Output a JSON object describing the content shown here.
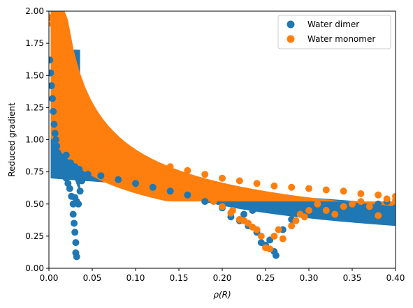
{
  "chart_data": {
    "type": "scatter",
    "xlabel": "ρ(R)",
    "ylabel": "Reduced gradient",
    "xlim": [
      0.0,
      0.4
    ],
    "ylim": [
      0.0,
      2.0
    ],
    "xticks": [
      "0.00",
      "0.05",
      "0.10",
      "0.15",
      "0.20",
      "0.25",
      "0.30",
      "0.35",
      "0.40"
    ],
    "xtick_values": [
      0.0,
      0.05,
      0.1,
      0.15,
      0.2,
      0.25,
      0.3,
      0.35,
      0.4
    ],
    "yticks": [
      "0.00",
      "0.25",
      "0.50",
      "0.75",
      "1.00",
      "1.25",
      "1.50",
      "1.75",
      "2.00"
    ],
    "ytick_values": [
      0.0,
      0.25,
      0.5,
      0.75,
      1.0,
      1.25,
      1.5,
      1.75,
      2.0
    ],
    "grid": false,
    "legend_position": "top-right",
    "series": [
      {
        "name": "Water dimer",
        "color": "#1f77b4",
        "points": [
          [
            0.001,
            1.62
          ],
          [
            0.002,
            1.52
          ],
          [
            0.003,
            1.42
          ],
          [
            0.004,
            1.32
          ],
          [
            0.005,
            1.22
          ],
          [
            0.006,
            1.12
          ],
          [
            0.007,
            1.05
          ],
          [
            0.008,
            1.0
          ],
          [
            0.009,
            0.95
          ],
          [
            0.01,
            0.9
          ],
          [
            0.012,
            0.86
          ],
          [
            0.014,
            0.82
          ],
          [
            0.016,
            0.78
          ],
          [
            0.018,
            0.74
          ],
          [
            0.02,
            0.7
          ],
          [
            0.022,
            0.66
          ],
          [
            0.024,
            0.62
          ],
          [
            0.026,
            0.56
          ],
          [
            0.028,
            0.5
          ],
          [
            0.028,
            0.42
          ],
          [
            0.029,
            0.35
          ],
          [
            0.03,
            0.28
          ],
          [
            0.031,
            0.2
          ],
          [
            0.031,
            0.12
          ],
          [
            0.032,
            0.09
          ],
          [
            0.03,
            0.55
          ],
          [
            0.032,
            0.52
          ],
          [
            0.034,
            0.5
          ],
          [
            0.036,
            0.6
          ],
          [
            0.038,
            0.68
          ],
          [
            0.04,
            0.72
          ],
          [
            0.045,
            0.73
          ],
          [
            0.02,
            0.88
          ],
          [
            0.025,
            0.82
          ],
          [
            0.03,
            0.79
          ],
          [
            0.035,
            0.77
          ],
          [
            0.06,
            0.72
          ],
          [
            0.08,
            0.69
          ],
          [
            0.1,
            0.66
          ],
          [
            0.12,
            0.63
          ],
          [
            0.14,
            0.6
          ],
          [
            0.16,
            0.57
          ],
          [
            0.18,
            0.52
          ],
          [
            0.2,
            0.47
          ],
          [
            0.21,
            0.4
          ],
          [
            0.22,
            0.37
          ],
          [
            0.23,
            0.33
          ],
          [
            0.24,
            0.28
          ],
          [
            0.245,
            0.2
          ],
          [
            0.25,
            0.18
          ],
          [
            0.255,
            0.22
          ],
          [
            0.26,
            0.13
          ],
          [
            0.262,
            0.1
          ],
          [
            0.27,
            0.3
          ],
          [
            0.28,
            0.38
          ],
          [
            0.29,
            0.42
          ],
          [
            0.3,
            0.46
          ],
          [
            0.31,
            0.48
          ],
          [
            0.32,
            0.47
          ],
          [
            0.33,
            0.44
          ],
          [
            0.35,
            0.45
          ],
          [
            0.36,
            0.49
          ],
          [
            0.37,
            0.46
          ],
          [
            0.38,
            0.5
          ],
          [
            0.39,
            0.52
          ],
          [
            0.4,
            0.47
          ],
          [
            0.34,
            0.42
          ],
          [
            0.35,
            0.4
          ],
          [
            0.225,
            0.42
          ],
          [
            0.235,
            0.45
          ]
        ]
      },
      {
        "name": "Water monomer",
        "color": "#ff7f0e",
        "points": [
          [
            0.002,
            1.95
          ],
          [
            0.004,
            1.9
          ],
          [
            0.006,
            1.85
          ],
          [
            0.008,
            1.8
          ],
          [
            0.01,
            1.75
          ],
          [
            0.012,
            1.7
          ],
          [
            0.014,
            1.6
          ],
          [
            0.016,
            1.5
          ],
          [
            0.018,
            1.42
          ],
          [
            0.02,
            1.35
          ],
          [
            0.025,
            1.25
          ],
          [
            0.03,
            1.17
          ],
          [
            0.035,
            1.12
          ],
          [
            0.04,
            1.07
          ],
          [
            0.05,
            1.0
          ],
          [
            0.06,
            0.96
          ],
          [
            0.07,
            0.93
          ],
          [
            0.08,
            0.9
          ],
          [
            0.1,
            0.86
          ],
          [
            0.12,
            0.82
          ],
          [
            0.14,
            0.79
          ],
          [
            0.16,
            0.76
          ],
          [
            0.18,
            0.73
          ],
          [
            0.2,
            0.7
          ],
          [
            0.22,
            0.68
          ],
          [
            0.24,
            0.66
          ],
          [
            0.26,
            0.64
          ],
          [
            0.28,
            0.63
          ],
          [
            0.3,
            0.62
          ],
          [
            0.32,
            0.61
          ],
          [
            0.34,
            0.6
          ],
          [
            0.36,
            0.58
          ],
          [
            0.38,
            0.57
          ],
          [
            0.4,
            0.56
          ],
          [
            0.015,
            1.05
          ],
          [
            0.02,
            0.95
          ],
          [
            0.03,
            0.9
          ],
          [
            0.04,
            0.86
          ],
          [
            0.05,
            0.82
          ],
          [
            0.07,
            0.78
          ],
          [
            0.09,
            0.74
          ],
          [
            0.11,
            0.7
          ],
          [
            0.13,
            0.66
          ],
          [
            0.15,
            0.62
          ],
          [
            0.17,
            0.57
          ],
          [
            0.19,
            0.52
          ],
          [
            0.2,
            0.48
          ],
          [
            0.21,
            0.43
          ],
          [
            0.22,
            0.38
          ],
          [
            0.23,
            0.35
          ],
          [
            0.235,
            0.32
          ],
          [
            0.24,
            0.3
          ],
          [
            0.245,
            0.25
          ],
          [
            0.25,
            0.16
          ],
          [
            0.255,
            0.15
          ],
          [
            0.26,
            0.25
          ],
          [
            0.265,
            0.3
          ],
          [
            0.27,
            0.23
          ],
          [
            0.28,
            0.33
          ],
          [
            0.29,
            0.42
          ],
          [
            0.3,
            0.45
          ],
          [
            0.31,
            0.5
          ],
          [
            0.32,
            0.45
          ],
          [
            0.33,
            0.42
          ],
          [
            0.34,
            0.48
          ],
          [
            0.35,
            0.5
          ],
          [
            0.36,
            0.52
          ],
          [
            0.37,
            0.48
          ],
          [
            0.38,
            0.41
          ],
          [
            0.39,
            0.54
          ],
          [
            0.4,
            0.53
          ],
          [
            0.285,
            0.37
          ],
          [
            0.295,
            0.4
          ],
          [
            0.225,
            0.37
          ],
          [
            0.212,
            0.45
          ]
        ]
      }
    ]
  }
}
